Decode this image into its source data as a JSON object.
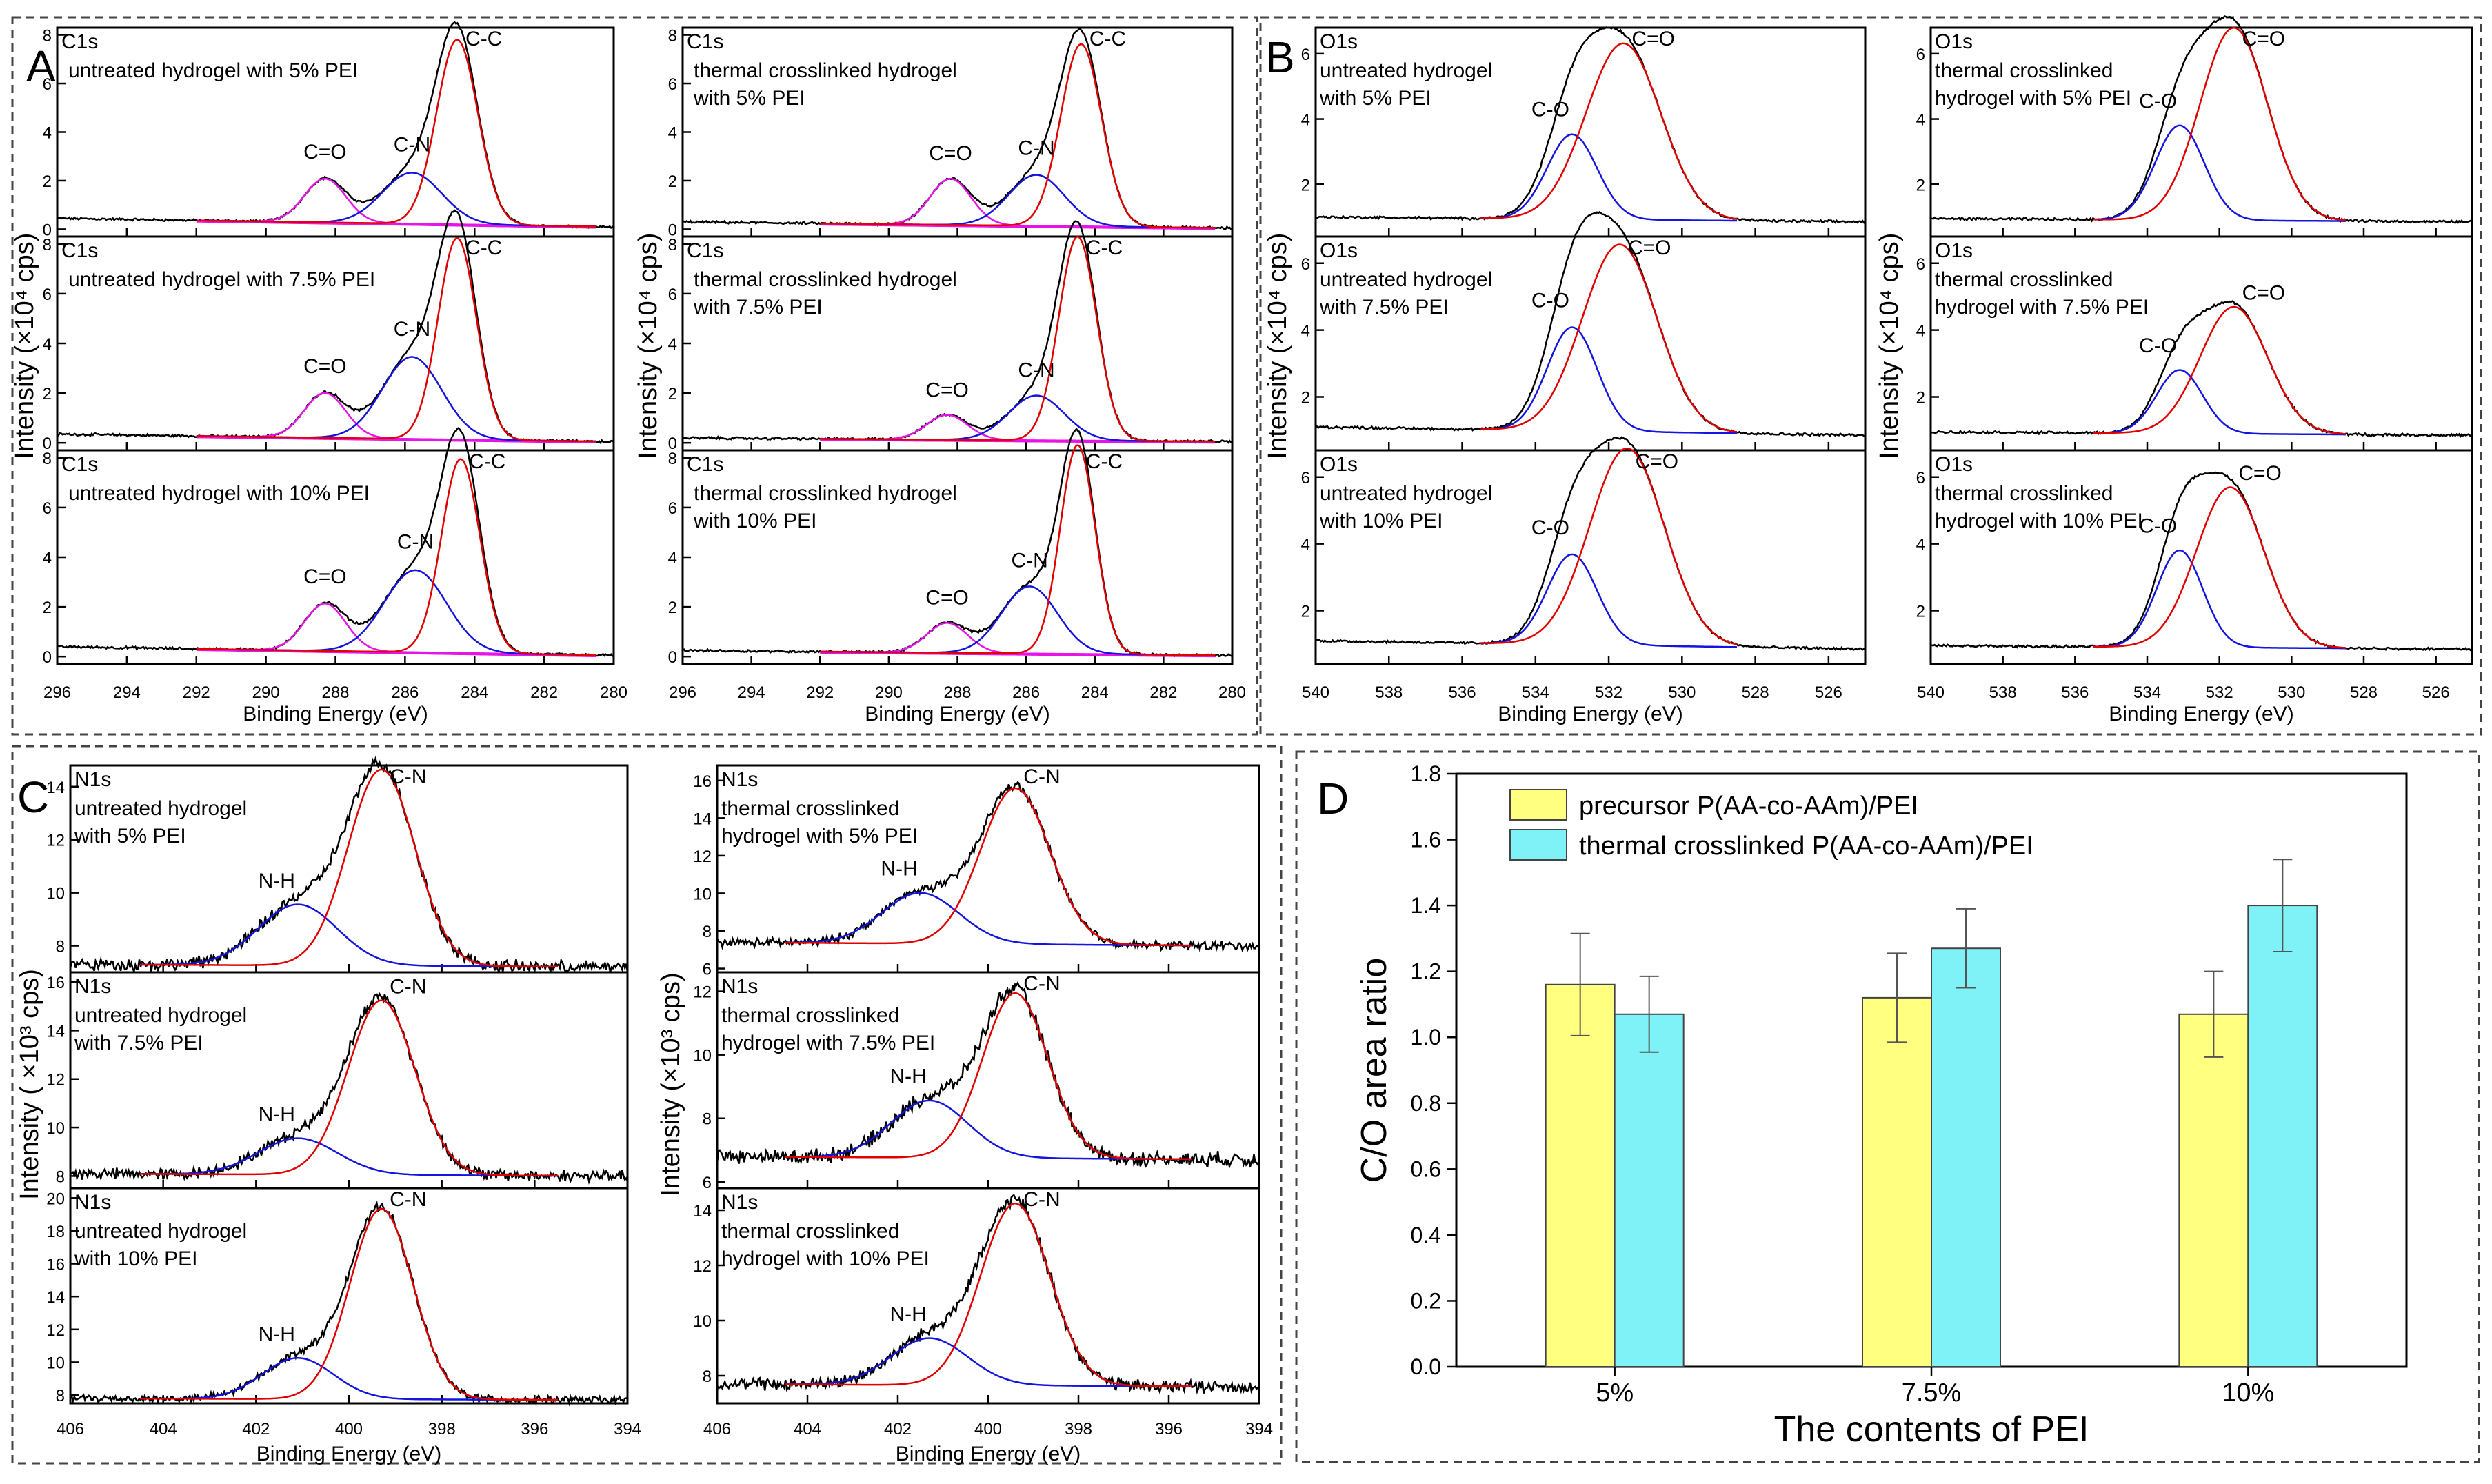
{
  "figure": {
    "panel_letters": [
      "A",
      "B",
      "C",
      "D"
    ]
  },
  "colors": {
    "raw": "#000000",
    "fit": "#e00000",
    "comp_a": "#1414e0",
    "background": "#e614e6",
    "bar1": "#ffff80",
    "bar2": "#7ff2f7"
  },
  "chart_data": [
    {
      "panel": "A",
      "type": "line",
      "column_titles": [
        "",
        ""
      ],
      "xlabel": "Binding Energy (eV)",
      "ylabel": "Intensity (×10⁴ cps)",
      "xlim": [
        296,
        280
      ],
      "xticks": [
        296,
        294,
        292,
        290,
        288,
        286,
        284,
        282,
        280
      ],
      "subplots": [
        {
          "element": "C1s",
          "sample": [
            "untreated hydrogel with 5% PEI"
          ],
          "ylim": [
            -0.3,
            8.3
          ],
          "yticks": [
            0,
            2,
            4,
            6,
            8
          ],
          "peaks": [
            {
              "label": "C=O",
              "center": 288.3,
              "height": 1.8,
              "fwhm": 1.4
            },
            {
              "label": "C-N",
              "center": 285.8,
              "height": 2.1,
              "fwhm": 2.0
            },
            {
              "label": "C-C",
              "center": 284.5,
              "height": 7.6,
              "fwhm": 1.4
            }
          ],
          "baseline": [
            0.45,
            0.1
          ]
        },
        {
          "element": "C1s",
          "sample": [
            "untreated hydrogel with 7.5% PEI"
          ],
          "ylim": [
            -0.3,
            8.3
          ],
          "yticks": [
            0,
            2,
            4,
            6,
            8
          ],
          "peaks": [
            {
              "label": "C=O",
              "center": 288.3,
              "height": 1.8,
              "fwhm": 1.4
            },
            {
              "label": "C-N",
              "center": 285.8,
              "height": 3.3,
              "fwhm": 2.0
            },
            {
              "label": "C-C",
              "center": 284.5,
              "height": 8.1,
              "fwhm": 1.3
            }
          ],
          "baseline": [
            0.35,
            0.05
          ]
        },
        {
          "element": "C1s",
          "sample": [
            "untreated hydrogel with 10% PEI"
          ],
          "ylim": [
            -0.3,
            8.3
          ],
          "yticks": [
            0,
            2,
            4,
            6,
            8
          ],
          "peaks": [
            {
              "label": "C=O",
              "center": 288.3,
              "height": 1.9,
              "fwhm": 1.4
            },
            {
              "label": "C-N",
              "center": 285.7,
              "height": 3.3,
              "fwhm": 2.1
            },
            {
              "label": "C-C",
              "center": 284.4,
              "height": 7.8,
              "fwhm": 1.3
            }
          ],
          "baseline": [
            0.4,
            0.05
          ]
        },
        {
          "element": "C1s",
          "sample": [
            "thermal crosslinked hydrogel",
            "with 5% PEI"
          ],
          "ylim": [
            -0.3,
            8.3
          ],
          "yticks": [
            0,
            2,
            4,
            6,
            8
          ],
          "peaks": [
            {
              "label": "C=O",
              "center": 288.2,
              "height": 1.9,
              "fwhm": 1.4
            },
            {
              "label": "C-N",
              "center": 285.7,
              "height": 2.1,
              "fwhm": 1.9
            },
            {
              "label": "C-C",
              "center": 284.4,
              "height": 7.5,
              "fwhm": 1.4
            }
          ],
          "baseline": [
            0.3,
            0.05
          ]
        },
        {
          "element": "C1s",
          "sample": [
            "thermal crosslinked hydrogel",
            "with 7.5% PEI"
          ],
          "ylim": [
            -0.3,
            8.3
          ],
          "yticks": [
            0,
            2,
            4,
            6,
            8
          ],
          "peaks": [
            {
              "label": "C=O",
              "center": 288.3,
              "height": 1.0,
              "fwhm": 1.4
            },
            {
              "label": "C-N",
              "center": 285.7,
              "height": 1.8,
              "fwhm": 1.9
            },
            {
              "label": "C-C",
              "center": 284.5,
              "height": 8.2,
              "fwhm": 1.3
            }
          ],
          "baseline": [
            0.2,
            0.05
          ]
        },
        {
          "element": "C1s",
          "sample": [
            "thermal crosslinked hydrogel",
            "with 10% PEI"
          ],
          "ylim": [
            -0.3,
            8.3
          ],
          "yticks": [
            0,
            2,
            4,
            6,
            8
          ],
          "peaks": [
            {
              "label": "C=O",
              "center": 288.3,
              "height": 1.2,
              "fwhm": 1.4
            },
            {
              "label": "C-N",
              "center": 285.9,
              "height": 2.7,
              "fwhm": 1.9
            },
            {
              "label": "C-C",
              "center": 284.5,
              "height": 8.4,
              "fwhm": 1.2
            }
          ],
          "baseline": [
            0.25,
            0.05
          ]
        }
      ]
    },
    {
      "panel": "B",
      "type": "line",
      "column_titles": [
        "",
        ""
      ],
      "xlabel": "Binding Energy (eV)",
      "ylabel": "Intensity (×10⁴ cps)",
      "xlim": [
        540,
        525
      ],
      "xticks": [
        540,
        538,
        536,
        534,
        532,
        530,
        528,
        526
      ],
      "subplots": [
        {
          "element": "O1s",
          "sample": [
            "untreated hydrogel",
            "with 5% PEI"
          ],
          "ylim": [
            0.4,
            6.8
          ],
          "yticks": [
            2,
            4,
            6
          ],
          "peaks": [
            {
              "label": "C-O",
              "center": 533.0,
              "height": 2.6,
              "fwhm": 1.6
            },
            {
              "label": "C=O",
              "center": 531.6,
              "height": 5.4,
              "fwhm": 2.4
            }
          ],
          "baseline": [
            1.0,
            0.85
          ]
        },
        {
          "element": "O1s",
          "sample": [
            "untreated hydrogel",
            "with 7.5% PEI"
          ],
          "ylim": [
            0.4,
            6.8
          ],
          "yticks": [
            2,
            4,
            6
          ],
          "peaks": [
            {
              "label": "C-O",
              "center": 533.0,
              "height": 3.1,
              "fwhm": 1.6
            },
            {
              "label": "C=O",
              "center": 531.7,
              "height": 5.6,
              "fwhm": 2.4
            }
          ],
          "baseline": [
            1.1,
            0.85
          ]
        },
        {
          "element": "O1s",
          "sample": [
            "untreated hydrogel",
            "with 10% PEI"
          ],
          "ylim": [
            0.4,
            6.8
          ],
          "yticks": [
            2,
            4,
            6
          ],
          "peaks": [
            {
              "label": "C-O",
              "center": 533.0,
              "height": 2.7,
              "fwhm": 1.6
            },
            {
              "label": "C=O",
              "center": 531.5,
              "height": 5.9,
              "fwhm": 2.4
            }
          ],
          "baseline": [
            1.1,
            0.85
          ]
        },
        {
          "element": "O1s",
          "sample": [
            "thermal crosslinked",
            "hydrogel with 5% PEI"
          ],
          "ylim": [
            0.4,
            6.8
          ],
          "yticks": [
            2,
            4,
            6
          ],
          "peaks": [
            {
              "label": "C-O",
              "center": 533.1,
              "height": 2.9,
              "fwhm": 1.6
            },
            {
              "label": "C=O",
              "center": 531.6,
              "height": 5.9,
              "fwhm": 2.2
            }
          ],
          "baseline": [
            0.95,
            0.85
          ]
        },
        {
          "element": "O1s",
          "sample": [
            "thermal crosslinked",
            "hydrogel with 7.5% PEI"
          ],
          "ylim": [
            0.4,
            6.8
          ],
          "yticks": [
            2,
            4,
            6
          ],
          "peaks": [
            {
              "label": "C-O",
              "center": 533.1,
              "height": 1.9,
              "fwhm": 1.5
            },
            {
              "label": "C=O",
              "center": 531.6,
              "height": 3.8,
              "fwhm": 2.2
            }
          ],
          "baseline": [
            0.95,
            0.85
          ]
        },
        {
          "element": "O1s",
          "sample": [
            "thermal crosslinked",
            "hydrogel with 10% PEI"
          ],
          "ylim": [
            0.4,
            6.8
          ],
          "yticks": [
            2,
            4,
            6
          ],
          "peaks": [
            {
              "label": "C-O",
              "center": 533.1,
              "height": 2.9,
              "fwhm": 1.5
            },
            {
              "label": "C=O",
              "center": 531.7,
              "height": 4.8,
              "fwhm": 2.2
            }
          ],
          "baseline": [
            0.95,
            0.85
          ]
        }
      ]
    },
    {
      "panel": "C",
      "type": "line",
      "column_titles": [
        "",
        ""
      ],
      "xlabel": "Binding Energy (eV)",
      "ylabel": "Intensity (×10³ cps)",
      "ylabel_left": "Intensity ( ×10³ cps)",
      "xlim": [
        406,
        394
      ],
      "xticks": [
        406,
        404,
        402,
        400,
        398,
        396,
        394
      ],
      "subplots": [
        {
          "element": "N1s",
          "sample": [
            "untreated hydrogel",
            "with 5% PEI"
          ],
          "ylim": [
            7,
            14.8
          ],
          "yticks": [
            8,
            10,
            12,
            14
          ],
          "peaks": [
            {
              "label": "N-H",
              "center": 401.1,
              "height": 2.3,
              "fwhm": 2.0
            },
            {
              "label": "C-N",
              "center": 399.3,
              "height": 7.4,
              "fwhm": 1.7
            }
          ],
          "baseline": [
            7.3,
            7.2
          ]
        },
        {
          "element": "N1s",
          "sample": [
            "untreated hydrogel",
            "with 7.5% PEI"
          ],
          "ylim": [
            7.5,
            16.4
          ],
          "yticks": [
            8,
            10,
            12,
            14,
            16
          ],
          "peaks": [
            {
              "label": "N-H",
              "center": 401.1,
              "height": 1.5,
              "fwhm": 2.0
            },
            {
              "label": "C-N",
              "center": 399.3,
              "height": 7.2,
              "fwhm": 1.7
            }
          ],
          "baseline": [
            8.1,
            8.0
          ]
        },
        {
          "element": "N1s",
          "sample": [
            "untreated hydrogel",
            "with 10% PEI"
          ],
          "ylim": [
            7.5,
            20.6
          ],
          "yticks": [
            8,
            10,
            12,
            14,
            16,
            18,
            20
          ],
          "peaks": [
            {
              "label": "N-H",
              "center": 401.1,
              "height": 2.5,
              "fwhm": 1.8
            },
            {
              "label": "C-N",
              "center": 399.3,
              "height": 11.6,
              "fwhm": 1.6
            }
          ],
          "baseline": [
            7.8,
            7.7
          ]
        },
        {
          "element": "N1s",
          "sample": [
            "thermal crosslinked",
            "hydrogel with 5% PEI"
          ],
          "ylim": [
            5.8,
            16.8
          ],
          "yticks": [
            6,
            8,
            10,
            12,
            14,
            16
          ],
          "peaks": [
            {
              "label": "N-H",
              "center": 401.5,
              "height": 2.7,
              "fwhm": 2.0
            },
            {
              "label": "C-N",
              "center": 399.4,
              "height": 8.3,
              "fwhm": 1.8
            }
          ],
          "baseline": [
            7.4,
            7.2
          ]
        },
        {
          "element": "N1s",
          "sample": [
            "thermal crosslinked",
            "hydrogel with 7.5% PEI"
          ],
          "ylim": [
            5.8,
            12.6
          ],
          "yticks": [
            6,
            8,
            10,
            12
          ],
          "peaks": [
            {
              "label": "N-H",
              "center": 401.3,
              "height": 1.8,
              "fwhm": 2.0
            },
            {
              "label": "C-N",
              "center": 399.4,
              "height": 5.2,
              "fwhm": 1.7
            }
          ],
          "baseline": [
            6.8,
            6.7
          ]
        },
        {
          "element": "N1s",
          "sample": [
            "thermal crosslinked",
            "hydrogel with 10% PEI"
          ],
          "ylim": [
            7.0,
            14.8
          ],
          "yticks": [
            8,
            10,
            12,
            14
          ],
          "peaks": [
            {
              "label": "N-H",
              "center": 401.3,
              "height": 1.7,
              "fwhm": 2.0
            },
            {
              "label": "C-N",
              "center": 399.4,
              "height": 6.6,
              "fwhm": 1.8
            }
          ],
          "baseline": [
            7.7,
            7.6
          ]
        }
      ]
    },
    {
      "panel": "D",
      "type": "bar",
      "categories": [
        "5%",
        "7.5%",
        "10%"
      ],
      "series": [
        {
          "name": "precursor P(AA-co-AAm)/PEI",
          "values": [
            1.16,
            1.12,
            1.07
          ],
          "errors": [
            0.155,
            0.135,
            0.13
          ]
        },
        {
          "name": "thermal crosslinked P(AA-co-AAm)/PEI",
          "values": [
            1.07,
            1.27,
            1.4
          ],
          "errors": [
            0.115,
            0.12,
            0.14
          ]
        }
      ],
      "xlabel": "The contents of PEI",
      "ylabel": "C/O area ratio",
      "ylim": [
        0,
        1.8
      ],
      "yticks": [
        0.0,
        0.2,
        0.4,
        0.6,
        0.8,
        1.0,
        1.2,
        1.4,
        1.6,
        1.8
      ],
      "legend_position": "top-left"
    }
  ]
}
